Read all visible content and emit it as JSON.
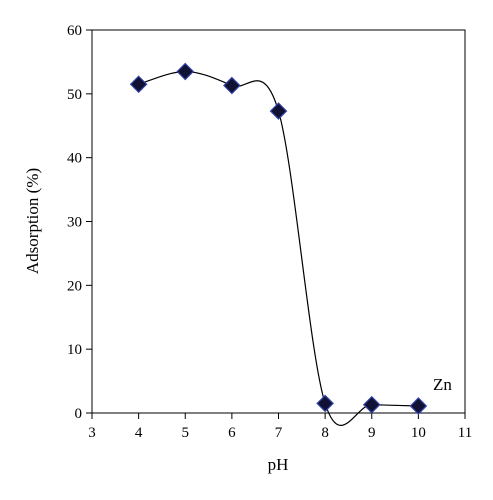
{
  "chart_data": {
    "type": "scatter",
    "title": "",
    "xlabel": "pH",
    "ylabel": "Adsorption (%)",
    "xlim": [
      3,
      11
    ],
    "ylim": [
      0,
      60
    ],
    "xticks": [
      3,
      4,
      5,
      6,
      7,
      8,
      9,
      10,
      11
    ],
    "yticks": [
      0,
      10,
      20,
      30,
      40,
      50,
      60
    ],
    "x": [
      4,
      5,
      6,
      7,
      8,
      9,
      10
    ],
    "y": [
      51.5,
      53.5,
      51.3,
      47.3,
      1.5,
      1.3,
      1.1
    ],
    "marker": "diamond",
    "marker_color": "#111133",
    "marker_edge": "#3344aa",
    "smooth_line": true,
    "annotation": "Zn",
    "grid": false,
    "legend": "none"
  }
}
